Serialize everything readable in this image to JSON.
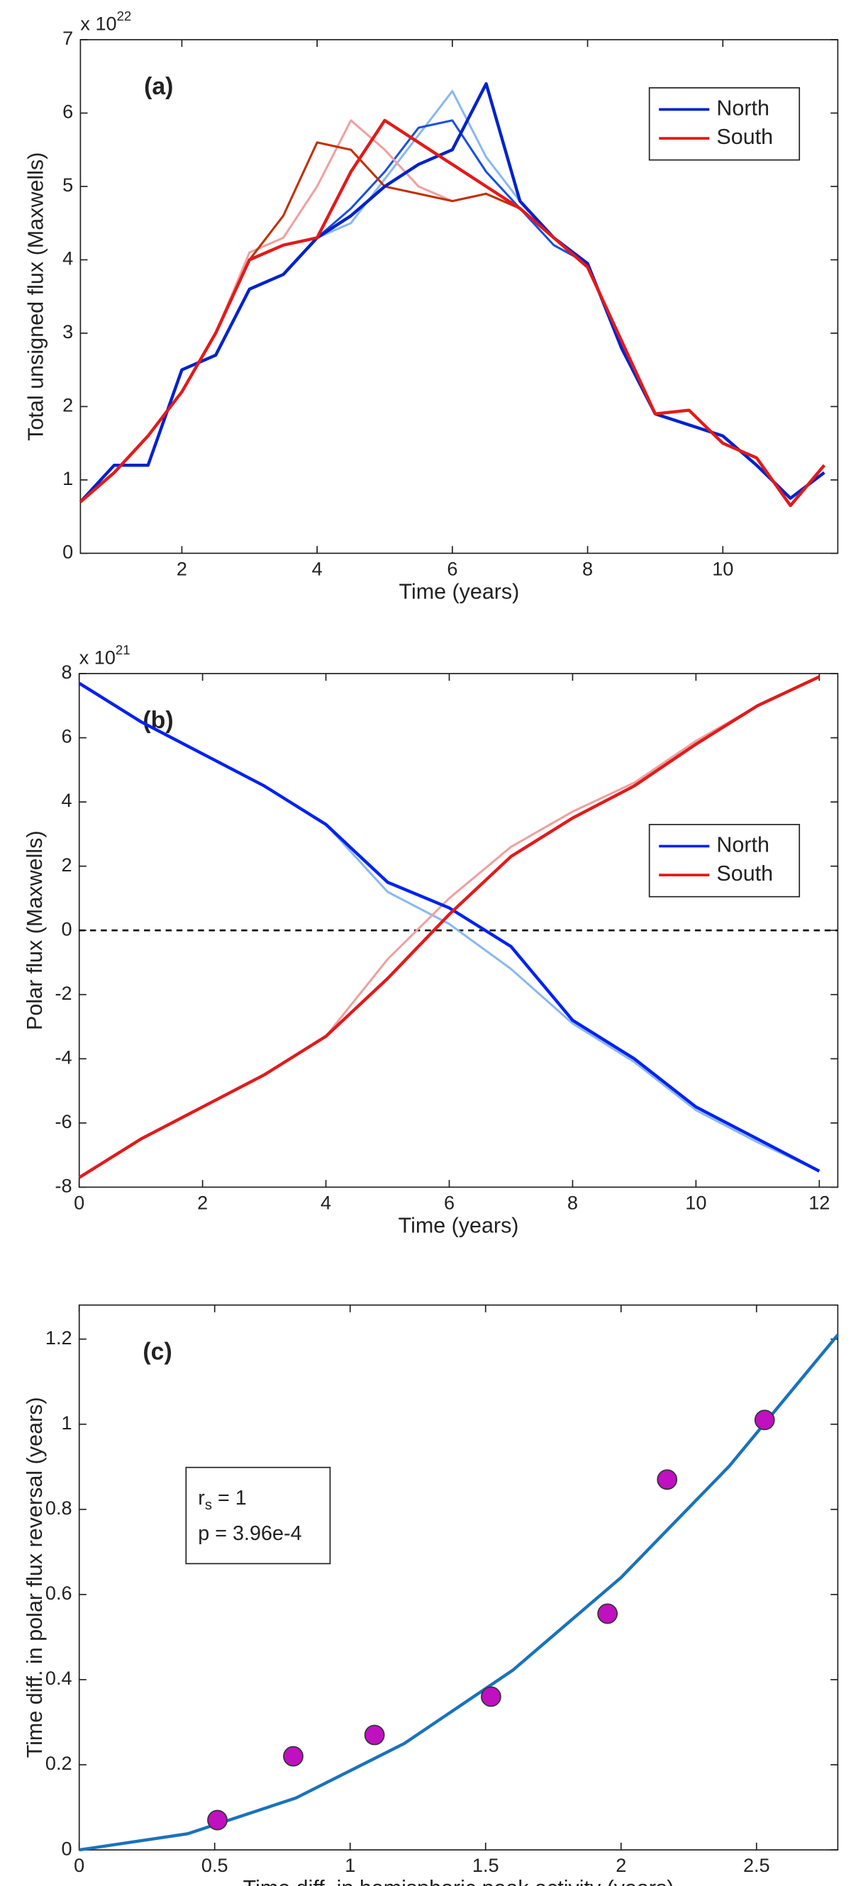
{
  "chart_data": [
    {
      "type": "line",
      "label": "(a)",
      "multiplier": {
        "base": "x 10",
        "exponent": "22"
      },
      "xlabel": "Time (years)",
      "ylabel": "Total unsigned flux (Maxwells)",
      "xlim": [
        0.5,
        11.7
      ],
      "ylim": [
        0,
        7
      ],
      "xticks": [
        2,
        4,
        6,
        8,
        10
      ],
      "yticks": [
        0,
        1,
        2,
        3,
        4,
        5,
        6,
        7
      ],
      "legend": "upper right",
      "x": [
        0.5,
        1,
        1.5,
        2,
        2.5,
        3,
        3.5,
        4,
        4.5,
        5,
        5.5,
        6,
        6.5,
        7,
        7.5,
        8,
        8.5,
        9,
        9.5,
        10,
        10.5,
        11,
        11.5
      ],
      "series": [
        {
          "color": "#8ab8f0",
          "values": [
            0.7,
            1.2,
            1.2,
            2.5,
            2.7,
            3.6,
            3.8,
            4.3,
            4.5,
            5.1,
            5.7,
            6.3,
            5.4,
            4.8,
            4.3,
            3.95,
            2.8,
            1.9,
            1.75,
            1.6,
            1.2,
            0.75,
            1.1
          ]
        },
        {
          "color": "#1a50e0",
          "values": [
            0.7,
            1.2,
            1.2,
            2.5,
            2.7,
            3.6,
            3.8,
            4.3,
            4.7,
            5.2,
            5.8,
            5.9,
            5.2,
            4.7,
            4.2,
            3.95,
            2.8,
            1.9,
            1.75,
            1.6,
            1.2,
            0.75,
            1.1
          ]
        },
        {
          "color": "#f0a0a0",
          "values": [
            0.7,
            1.1,
            1.6,
            2.2,
            3.0,
            4.1,
            4.3,
            5.0,
            5.9,
            5.5,
            5.0,
            4.8,
            4.9,
            4.7,
            4.3,
            3.9,
            2.9,
            1.9,
            1.95,
            1.5,
            1.3,
            0.65,
            1.2
          ]
        },
        {
          "color": "#c23000",
          "values": [
            0.7,
            1.1,
            1.6,
            2.2,
            3.0,
            4.0,
            4.6,
            5.6,
            5.5,
            5.0,
            4.9,
            4.8,
            4.9,
            4.7,
            4.3,
            3.9,
            2.9,
            1.9,
            1.95,
            1.5,
            1.3,
            0.65,
            1.2
          ]
        },
        {
          "name": "North",
          "color": "#0022cc",
          "values": [
            0.7,
            1.2,
            1.2,
            2.5,
            2.7,
            3.6,
            3.8,
            4.3,
            4.6,
            5.0,
            5.3,
            5.5,
            6.4,
            4.8,
            4.3,
            3.95,
            2.8,
            1.9,
            1.75,
            1.6,
            1.2,
            0.75,
            1.1
          ]
        },
        {
          "name": "South",
          "color": "#e21a1a",
          "values": [
            0.7,
            1.1,
            1.6,
            2.2,
            3.0,
            4.0,
            4.2,
            4.3,
            5.2,
            5.9,
            5.6,
            5.3,
            5.0,
            4.7,
            4.3,
            3.9,
            2.9,
            1.9,
            1.95,
            1.5,
            1.3,
            0.65,
            1.2
          ]
        }
      ]
    },
    {
      "type": "line",
      "label": "(b)",
      "multiplier": {
        "base": "x 10",
        "exponent": "21"
      },
      "xlabel": "Time (years)",
      "ylabel": "Polar flux (Maxwells)",
      "xlim": [
        0,
        12.3
      ],
      "ylim": [
        -8,
        8
      ],
      "xticks": [
        0,
        2,
        4,
        6,
        8,
        10,
        12
      ],
      "yticks": [
        -8,
        -6,
        -4,
        -2,
        0,
        2,
        4,
        6,
        8
      ],
      "legend": "center right",
      "zero_line": true,
      "x": [
        0,
        1,
        2,
        3,
        4,
        5,
        6,
        7,
        8,
        9,
        10,
        11,
        12
      ],
      "series": [
        {
          "color": "#8ab8f0",
          "values": [
            7.7,
            6.5,
            5.5,
            4.5,
            3.3,
            1.2,
            0.2,
            -1.2,
            -2.9,
            -4.1,
            -5.6,
            -6.6,
            -7.5
          ]
        },
        {
          "color": "#f0a0a0",
          "values": [
            -7.7,
            -6.5,
            -5.5,
            -4.5,
            -3.3,
            -0.9,
            1.0,
            2.6,
            3.7,
            4.6,
            5.9,
            7.0,
            7.9
          ]
        },
        {
          "name": "North",
          "color": "#0022ee",
          "values": [
            7.7,
            6.5,
            5.5,
            4.5,
            3.3,
            1.5,
            0.7,
            -0.5,
            -2.8,
            -4.0,
            -5.5,
            -6.5,
            -7.5
          ]
        },
        {
          "name": "South",
          "color": "#e21a1a",
          "values": [
            -7.7,
            -6.5,
            -5.5,
            -4.5,
            -3.3,
            -1.5,
            0.5,
            2.3,
            3.5,
            4.5,
            5.8,
            7.0,
            7.9
          ]
        }
      ]
    },
    {
      "type": "scatter",
      "label": "(c)",
      "xlabel": "Time diff. in hemispheric peak activity (years)",
      "ylabel": "Time diff. in polar flux reversal (years)",
      "xlim": [
        0,
        2.8
      ],
      "ylim": [
        0,
        1.28
      ],
      "xticks": [
        0,
        0.5,
        1,
        1.5,
        2,
        2.5
      ],
      "yticks": [
        0,
        0.2,
        0.4,
        0.6,
        0.8,
        1,
        1.2
      ],
      "stats": {
        "r_base": "r",
        "r_sub": "s",
        "r_value": " = 1",
        "p": "p = 3.96e-4"
      },
      "points": {
        "color": "#c010c0",
        "x": [
          0.51,
          0.79,
          1.09,
          1.52,
          1.95,
          2.17,
          2.53
        ],
        "values": [
          0.07,
          0.22,
          0.27,
          0.36,
          0.555,
          0.87,
          1.01
        ]
      },
      "fit": {
        "color": "#1a72bd",
        "x": [
          0,
          0.4,
          0.8,
          1.2,
          1.6,
          2.0,
          2.4,
          2.8
        ],
        "values": [
          0,
          0.038,
          0.122,
          0.25,
          0.422,
          0.64,
          0.902,
          1.21
        ]
      }
    }
  ]
}
